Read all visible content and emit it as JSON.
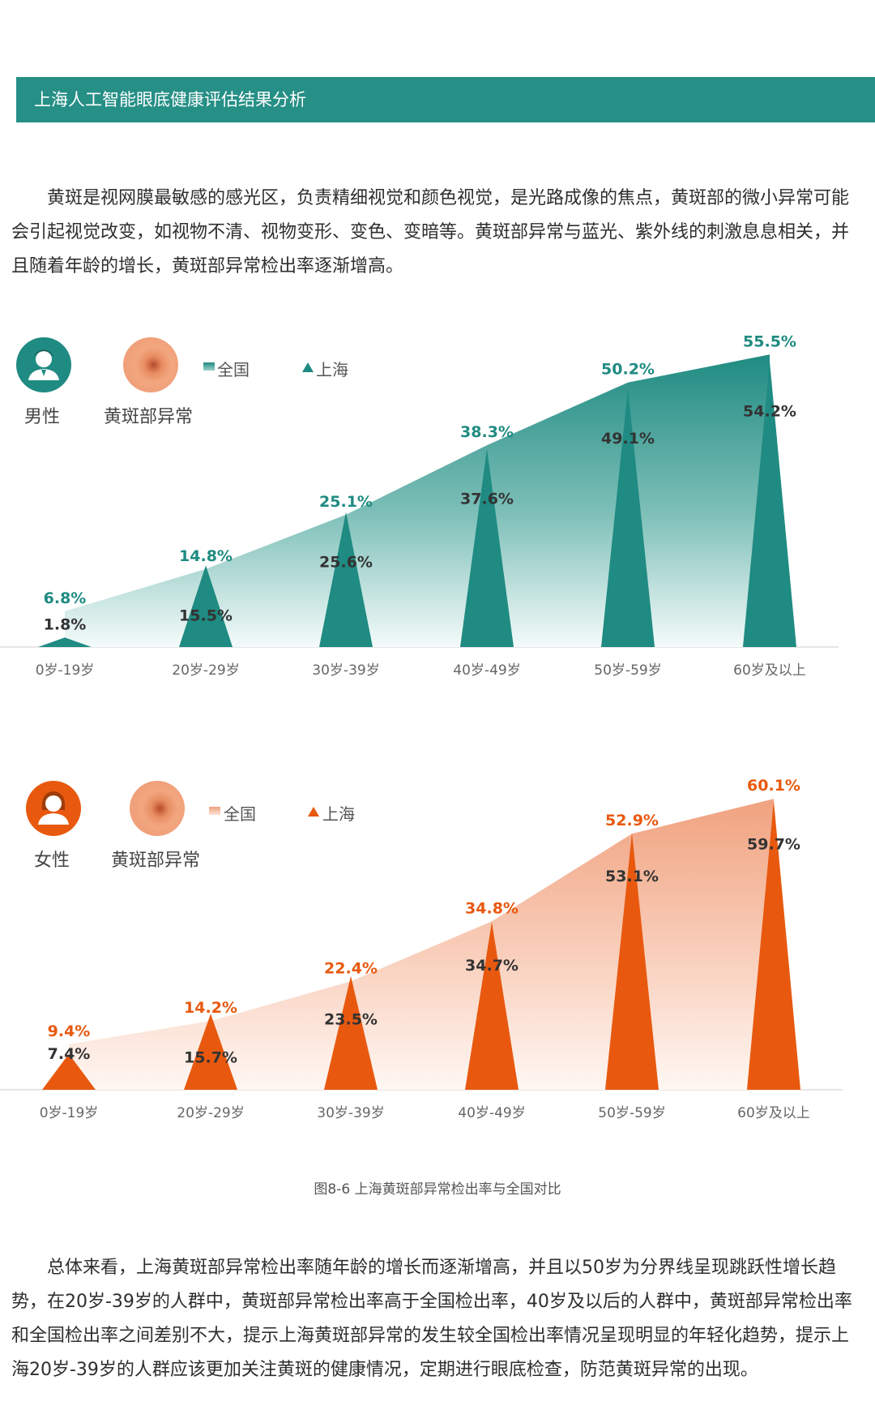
{
  "header": {
    "title": "上海人工智能眼底健康评估结果分析"
  },
  "intro_text": "黄斑是视网膜最敏感的感光区，负责精细视觉和颜色视觉，是光路成像的焦点，黄斑部的微小异常可能会引起视觉改变，如视物不清、视物变形、变色、变暗等。黄斑部异常与蓝光、紫外线的刺激息息相关，并且随着年龄的增长，黄斑部异常检出率逐渐增高。",
  "colors": {
    "male_accent": "#1f8b82",
    "female_accent": "#e8590f",
    "header": "#268f86"
  },
  "chart_data": [
    {
      "type": "area",
      "group_label": "男性",
      "topic_label": "黄斑部异常",
      "legend": {
        "national": "全国",
        "shanghai": "上海"
      },
      "categories": [
        "0岁-19岁",
        "20岁-29岁",
        "30岁-39岁",
        "40岁-49岁",
        "50岁-59岁",
        "60岁及以上"
      ],
      "series": [
        {
          "name": "全国",
          "values": [
            6.8,
            14.8,
            25.1,
            38.3,
            50.2,
            55.5
          ],
          "labels": [
            "6.8%",
            "14.8%",
            "25.1%",
            "38.3%",
            "50.2%",
            "55.5%"
          ],
          "mark": "area"
        },
        {
          "name": "上海",
          "values": [
            1.8,
            15.5,
            25.6,
            37.6,
            49.1,
            54.2
          ],
          "labels": [
            "1.8%",
            "15.5%",
            "25.6%",
            "37.6%",
            "49.1%",
            "54.2%"
          ],
          "mark": "triangle"
        }
      ],
      "ylim": [
        0,
        60
      ],
      "color": "#1f8b82"
    },
    {
      "type": "area",
      "group_label": "女性",
      "topic_label": "黄斑部异常",
      "legend": {
        "national": "全国",
        "shanghai": "上海"
      },
      "categories": [
        "0岁-19岁",
        "20岁-29岁",
        "30岁-39岁",
        "40岁-49岁",
        "50岁-59岁",
        "60岁及以上"
      ],
      "series": [
        {
          "name": "全国",
          "values": [
            9.4,
            14.2,
            22.4,
            34.8,
            52.9,
            60.1
          ],
          "labels": [
            "9.4%",
            "14.2%",
            "22.4%",
            "34.8%",
            "52.9%",
            "60.1%"
          ],
          "mark": "area"
        },
        {
          "name": "上海",
          "values": [
            7.4,
            15.7,
            23.5,
            34.7,
            53.1,
            59.7
          ],
          "labels": [
            "7.4%",
            "15.7%",
            "23.5%",
            "34.7%",
            "53.1%",
            "59.7%"
          ],
          "mark": "triangle"
        }
      ],
      "ylim": [
        0,
        65
      ],
      "color": "#e8590f"
    }
  ],
  "caption": "图8-6 上海黄斑部异常检出率与全国对比",
  "summary_text": "总体来看，上海黄斑部异常检出率随年龄的增长而逐渐增高，并且以50岁为分界线呈现跳跃性增长趋势，在20岁-39岁的人群中，黄斑部异常检出率高于全国检出率，40岁及以后的人群中，黄斑部异常检出率和全国检出率之间差别不大，提示上海黄斑部异常的发生较全国检出率情况呈现明显的年轻化趋势，提示上海20岁-39岁的人群应该更加关注黄斑的健康情况，定期进行眼底检查，防范黄斑异常的出现。"
}
